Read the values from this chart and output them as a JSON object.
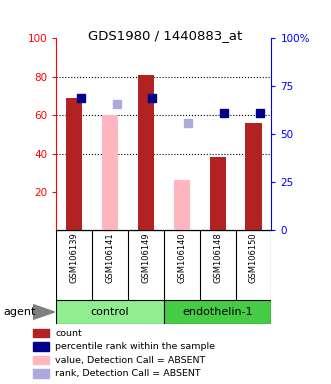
{
  "title": "GDS1980 / 1440883_at",
  "samples": [
    "GSM106139",
    "GSM106141",
    "GSM106149",
    "GSM106140",
    "GSM106148",
    "GSM106150"
  ],
  "bar_values": [
    69,
    60,
    81,
    26,
    38,
    56
  ],
  "bar_absent": [
    false,
    true,
    false,
    true,
    false,
    false
  ],
  "bar_color_present": "#B22222",
  "bar_color_absent": "#FFB6C1",
  "rank_values": [
    69,
    66,
    69,
    56,
    61,
    61
  ],
  "rank_absent": [
    false,
    true,
    false,
    true,
    false,
    false
  ],
  "rank_color_present": "#00008B",
  "rank_color_absent": "#AAAADD",
  "ylim": [
    0,
    100
  ],
  "yticks_left": [
    20,
    40,
    60,
    80,
    100
  ],
  "yticks_right": [
    0,
    25,
    50,
    75,
    100
  ],
  "ytick_labels_right": [
    "0",
    "25",
    "50",
    "75",
    "100%"
  ],
  "gridlines": [
    40,
    60,
    80
  ],
  "marker_size": 6,
  "legend_items": [
    {
      "label": "count",
      "color": "#B22222"
    },
    {
      "label": "percentile rank within the sample",
      "color": "#00008B"
    },
    {
      "label": "value, Detection Call = ABSENT",
      "color": "#FFB6C1"
    },
    {
      "label": "rank, Detection Call = ABSENT",
      "color": "#AAAADD"
    }
  ],
  "tick_area_color": "#BBBBBB",
  "group_ctrl_color": "#90EE90",
  "group_endo_color": "#44CC44",
  "background_color": "#FFFFFF"
}
